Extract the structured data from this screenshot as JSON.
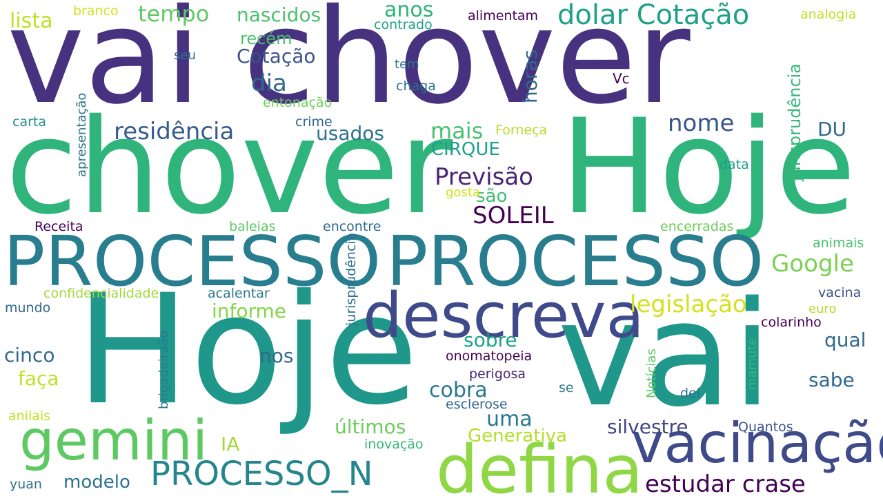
{
  "colors": {
    "dark_purple": "#440154",
    "indigo": "#46327e",
    "slate_blue": "#365c8d",
    "steel": "#277f8e",
    "teal": "#1fa187",
    "green": "#4ac16d",
    "lime": "#a0da39",
    "yellow": "#fde725",
    "yellow_green": "#d2e21b"
  },
  "words": [
    {
      "text": "vai chover",
      "color": "#46327e"
    },
    {
      "text": "chover",
      "color": "#2fb47c"
    },
    {
      "text": "Hoje",
      "color": "#2fb47c"
    },
    {
      "text": "PROCESSO",
      "color": "#287d8e"
    },
    {
      "text": "PROCESSO",
      "color": "#287d8e"
    },
    {
      "text": "Hoje",
      "color": "#1f988b"
    },
    {
      "text": "vai",
      "color": "#1f988b"
    },
    {
      "text": "descreva",
      "color": "#3e4a89"
    },
    {
      "text": "gemini",
      "color": "#5ec962"
    },
    {
      "text": "vacinação",
      "color": "#3e4a89"
    },
    {
      "text": "defina",
      "color": "#8fd744"
    },
    {
      "text": "PROCESSO_N",
      "color": "#25858e"
    },
    {
      "text": "estudar crase",
      "color": "#440154"
    },
    {
      "text": "dolar Cotação",
      "color": "#1fa187"
    },
    {
      "text": "residência",
      "color": "#365c8d"
    },
    {
      "text": "nome",
      "color": "#39568c"
    },
    {
      "text": "Previsão",
      "color": "#482475"
    },
    {
      "text": "SOLEIL",
      "color": "#440154"
    },
    {
      "text": "Google",
      "color": "#7ad151"
    },
    {
      "text": "legislação",
      "color": "#d2e21b"
    },
    {
      "text": "tempo",
      "color": "#5ec962"
    },
    {
      "text": "nascidos",
      "color": "#4ac16d"
    },
    {
      "text": "anos",
      "color": "#2fb47c"
    },
    {
      "text": "lista",
      "color": "#c2df23"
    },
    {
      "text": "Cotação",
      "color": "#3b528b"
    },
    {
      "text": "dia",
      "color": "#31688e"
    },
    {
      "text": "recém",
      "color": "#4ac16d"
    },
    {
      "text": "mais",
      "color": "#4ac16d"
    },
    {
      "text": "usados",
      "color": "#2c728e"
    },
    {
      "text": "CIRQUE",
      "color": "#1f9e89"
    },
    {
      "text": "são",
      "color": "#3dbc74"
    },
    {
      "text": "DU",
      "color": "#31688e"
    },
    {
      "text": "horas",
      "color": "#31688e"
    },
    {
      "text": "jurisprudência",
      "color": "#35b779"
    },
    {
      "text": "informe",
      "color": "#86d549"
    },
    {
      "text": "sobre",
      "color": "#1fa187"
    },
    {
      "text": "uma",
      "color": "#2a788e"
    },
    {
      "text": "cobra",
      "color": "#2a788e"
    },
    {
      "text": "qual",
      "color": "#31688e"
    },
    {
      "text": "sabe",
      "color": "#31688e"
    },
    {
      "text": "faça",
      "color": "#c2df23"
    },
    {
      "text": "cinco",
      "color": "#31688e"
    },
    {
      "text": "nos",
      "color": "#31688e"
    },
    {
      "text": "últimos",
      "color": "#6ccd5a"
    },
    {
      "text": "silvestre",
      "color": "#414487"
    },
    {
      "text": "Generativa",
      "color": "#b5de2b"
    },
    {
      "text": "modelo",
      "color": "#2c728e"
    },
    {
      "text": "IA",
      "color": "#a0da39"
    },
    {
      "text": "branco",
      "color": "#d2e21b"
    },
    {
      "text": "alimentam",
      "color": "#440154"
    },
    {
      "text": "analogia",
      "color": "#c2df23"
    },
    {
      "text": "contrado",
      "color": "#1fa187"
    },
    {
      "text": "seu",
      "color": "#2c728e"
    },
    {
      "text": "tem",
      "color": "#2c728e"
    },
    {
      "text": "chaga",
      "color": "#2c728e"
    },
    {
      "text": "Vc",
      "color": "#440154"
    },
    {
      "text": "entonação",
      "color": "#6ccd5a"
    },
    {
      "text": "carta",
      "color": "#21918c"
    },
    {
      "text": "crime",
      "color": "#31688e"
    },
    {
      "text": "Forneça",
      "color": "#b5de2b"
    },
    {
      "text": "data",
      "color": "#1f9e89"
    },
    {
      "text": "gosta",
      "color": "#d2e21b"
    },
    {
      "text": "apresentação",
      "color": "#2c728e"
    },
    {
      "text": "Receita",
      "color": "#440154"
    },
    {
      "text": "baleias",
      "color": "#5ec962"
    },
    {
      "text": "encontre",
      "color": "#31688e"
    },
    {
      "text": "encerradas",
      "color": "#6ccd5a"
    },
    {
      "text": "animais",
      "color": "#4ac16d"
    },
    {
      "text": "confidencialidade",
      "color": "#a0da39"
    },
    {
      "text": "acalentar",
      "color": "#2a788e"
    },
    {
      "text": "mundo",
      "color": "#31688e"
    },
    {
      "text": "jurisprudência",
      "color": "#2c728e"
    },
    {
      "text": "vacina",
      "color": "#3b528b"
    },
    {
      "text": "euro",
      "color": "#b5de2b"
    },
    {
      "text": "colarinho",
      "color": "#440154"
    },
    {
      "text": "onomatopeia",
      "color": "#440154"
    },
    {
      "text": "perigosa",
      "color": "#482475"
    },
    {
      "text": "brigadeiraão",
      "color": "#2a788e"
    },
    {
      "text": "Notícias",
      "color": "#5ec962"
    },
    {
      "text": "mamute",
      "color": "#35b779"
    },
    {
      "text": "se",
      "color": "#2a788e"
    },
    {
      "text": "del",
      "color": "#2c728e"
    },
    {
      "text": "esclerose",
      "color": "#31688e"
    },
    {
      "text": "anilais",
      "color": "#c2df23"
    },
    {
      "text": "inovação",
      "color": "#35b779"
    },
    {
      "text": "Quantos",
      "color": "#3b528b"
    },
    {
      "text": "yuan",
      "color": "#2c728e"
    }
  ]
}
